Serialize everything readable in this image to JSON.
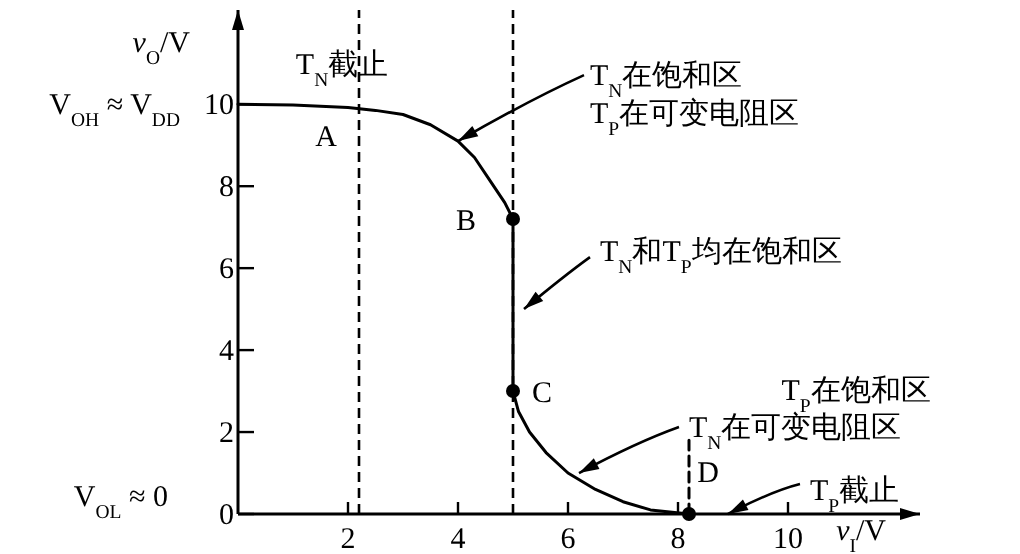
{
  "chart_data": {
    "type": "line",
    "xlabel": "v$_{I}$/V",
    "ylabel": "v$_{O}$/V",
    "xlim": [
      0,
      12.4
    ],
    "ylim": [
      0,
      12.3
    ],
    "xticks": [
      2,
      4,
      6,
      8,
      10
    ],
    "yticks": [
      0,
      2,
      4,
      6,
      8,
      10
    ],
    "grid": false,
    "series": [
      {
        "type": "line",
        "color": "#000000",
        "x": [
          0,
          1,
          2,
          2.5,
          3,
          3.5,
          4,
          4.3,
          4.6,
          4.85,
          5,
          5,
          5.1,
          5.3,
          5.6,
          6,
          6.5,
          7,
          7.5,
          8.2
        ],
        "values": [
          10,
          9.98,
          9.92,
          9.85,
          9.75,
          9.5,
          9.1,
          8.7,
          8.1,
          7.6,
          7.2,
          3,
          2.5,
          2,
          1.5,
          1,
          0.6,
          0.3,
          0.1,
          0
        ]
      },
      {
        "type": "line",
        "color": "#000000",
        "line_style": "dashed",
        "x": [
          8.2,
          8.2
        ],
        "values": [
          0,
          1.8
        ]
      },
      {
        "type": "scatter",
        "color": "#000000",
        "marker": "circle",
        "x": [
          5,
          5,
          8.2
        ],
        "values": [
          7.2,
          3,
          0
        ]
      }
    ],
    "ref_lines": [
      {
        "axis": "x",
        "value": 2.2,
        "line_style": "dashed"
      },
      {
        "axis": "x",
        "value": 5,
        "line_style": "dashed"
      }
    ],
    "annotations": [
      "T$_{N}$截止",
      {
        "text": "T$_{N}$在饱和区\nT$_{P}$在可变电阻区",
        "x": 4,
        "y": 9.1
      },
      {
        "text": "T$_{N}$和T$_{P}$均在饱和区",
        "x": 5.2,
        "y": 5
      },
      "T$_{P}$在饱和区",
      {
        "text": "T$_{N}$在可变电阻区",
        "x": 6.2,
        "y": 1
      },
      "T$_{P}$截止",
      "A",
      "B",
      "C",
      "D",
      "V$_{OH}$ ≈ V$_{DD}$",
      "V$_{OL}$ ≈ 0"
    ]
  }
}
